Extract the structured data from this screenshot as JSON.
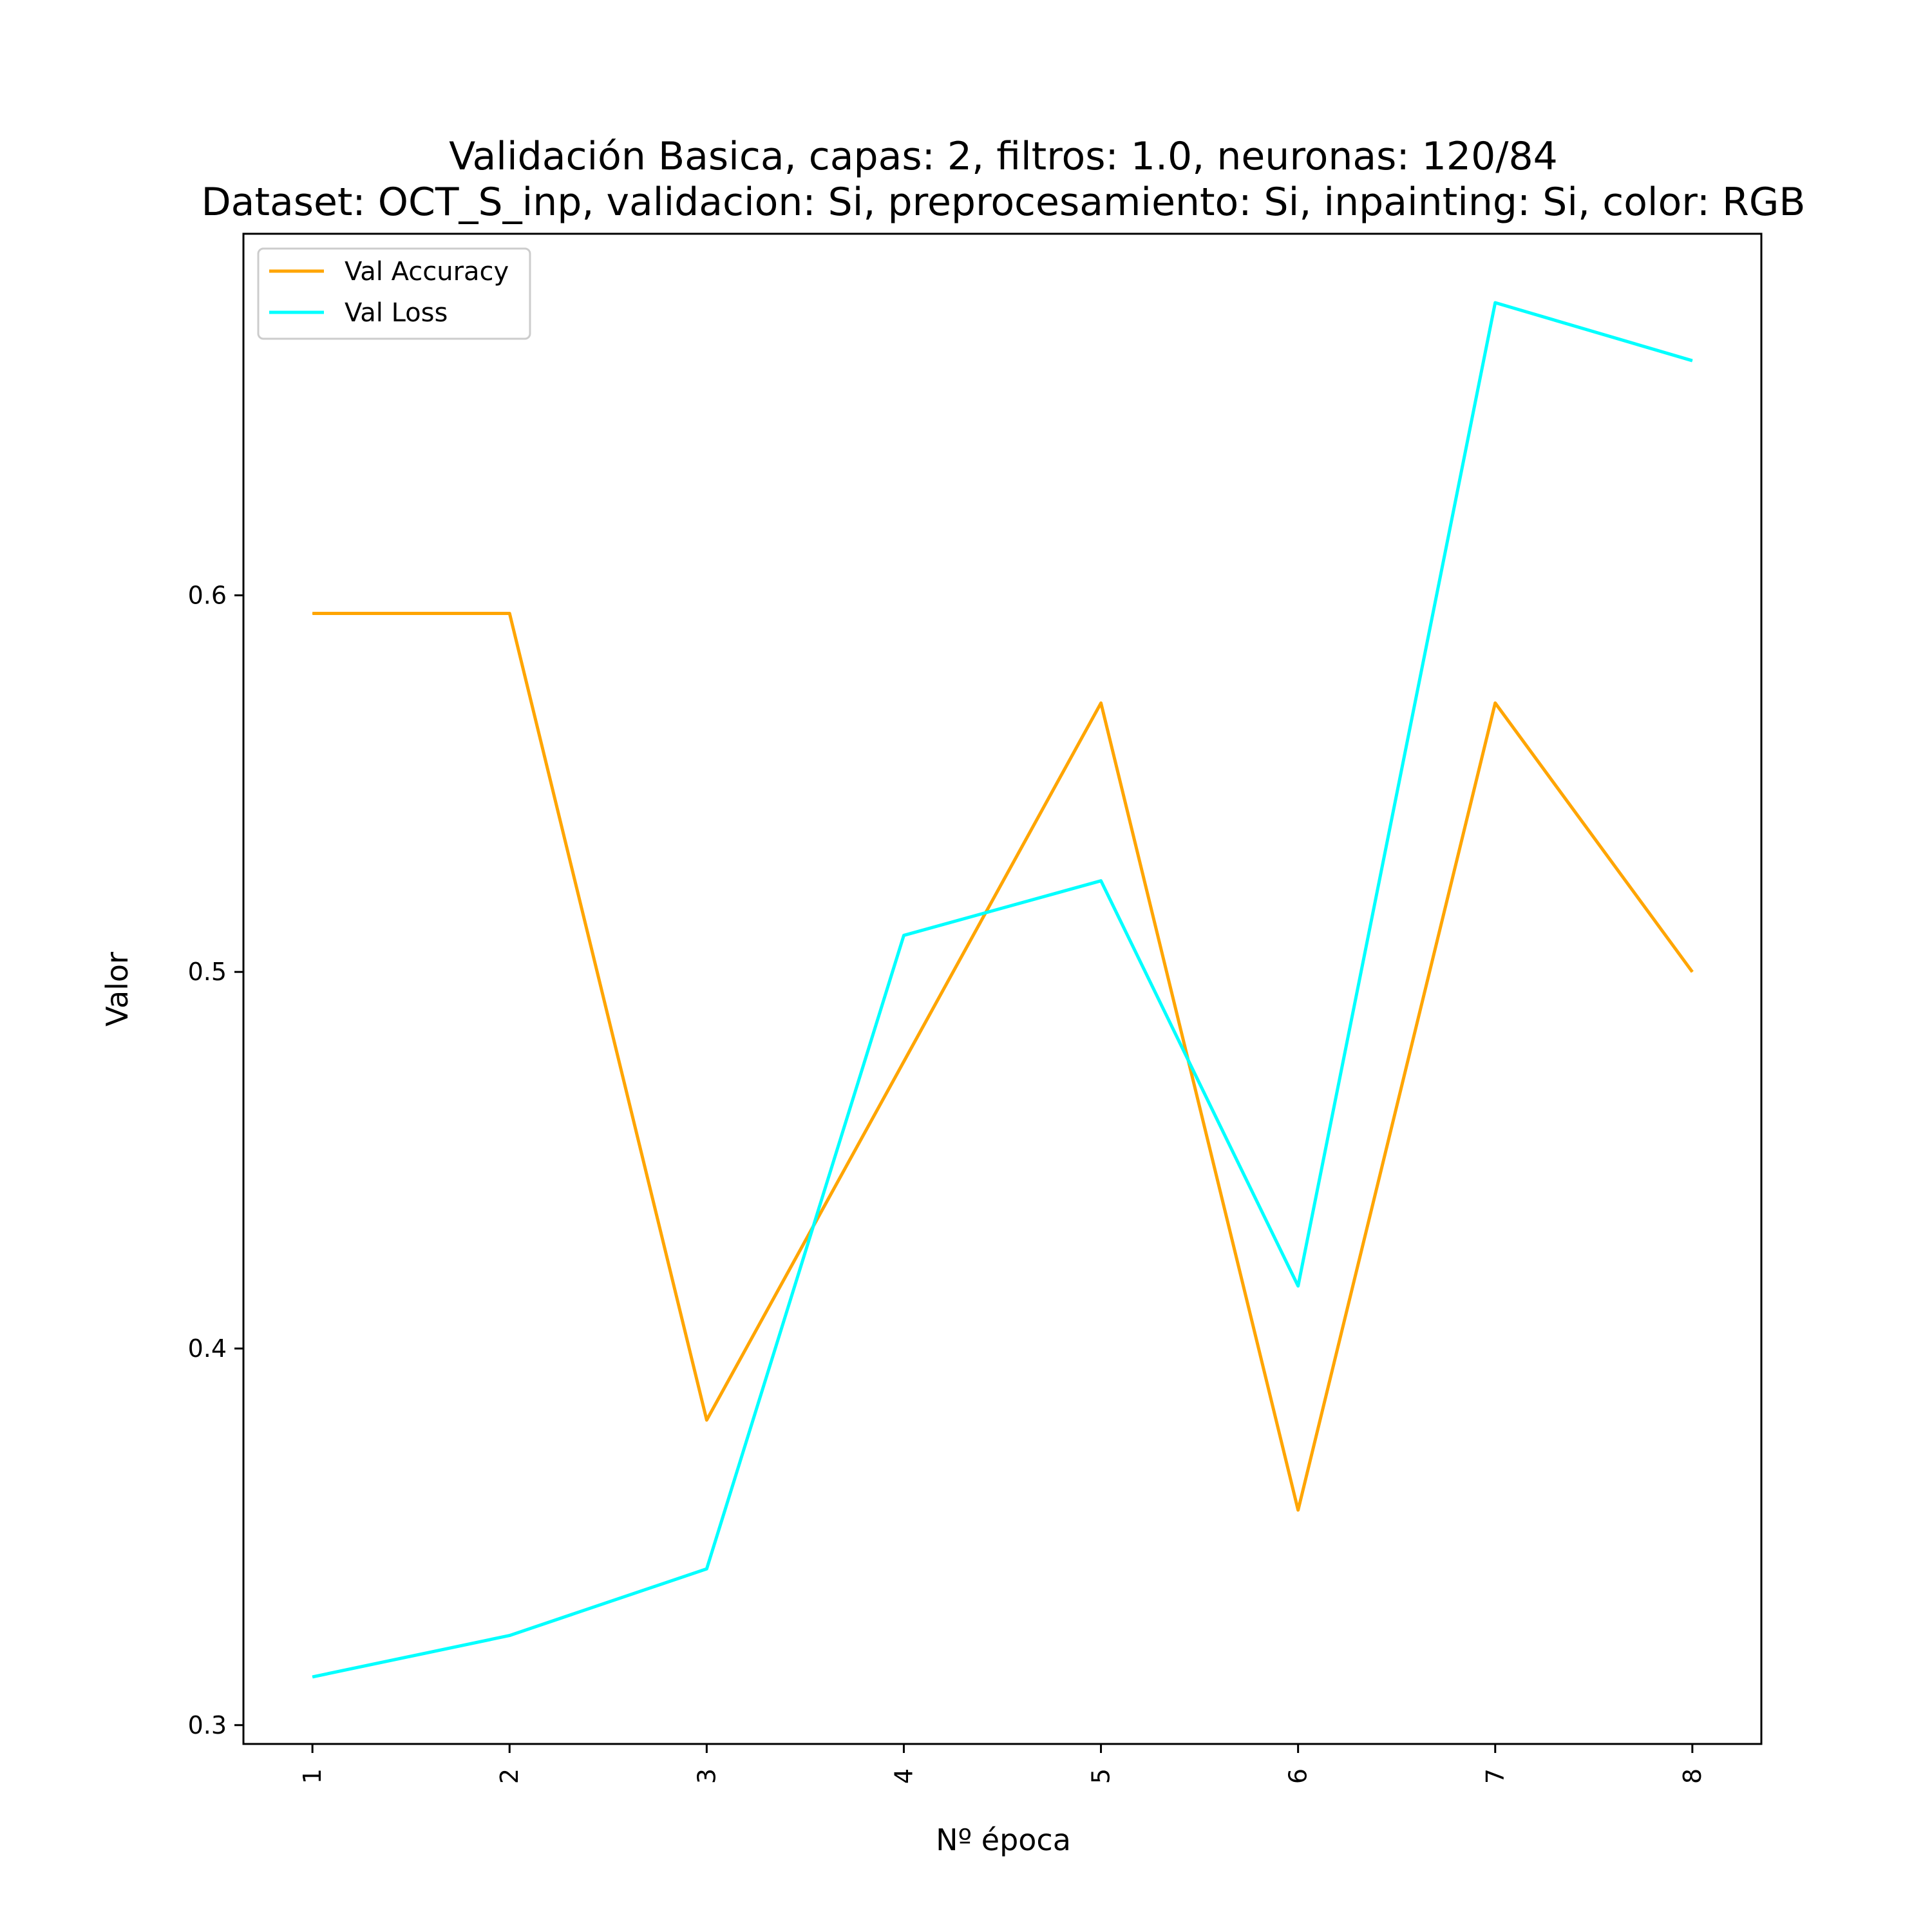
{
  "chart_data": {
    "type": "line",
    "title": "Validación Basica, capas: 2, filtros: 1.0, neuronas: 120/84",
    "subtitle": "Dataset: OCT_S_inp, validacion: Si, preprocesamiento: Si, inpainting: Si, color: RGB",
    "xlabel": "Nº época",
    "ylabel": "Valor",
    "x": [
      1,
      2,
      3,
      4,
      5,
      6,
      7,
      8
    ],
    "x_tick_labels": [
      "1",
      "2",
      "3",
      "4",
      "5",
      "6",
      "7",
      "8"
    ],
    "y_ticks": [
      0.3,
      0.4,
      0.5,
      0.6
    ],
    "y_tick_labels": [
      "0.3",
      "0.4",
      "0.5",
      "0.6"
    ],
    "xlim": [
      0.65,
      8.35
    ],
    "ylim": [
      0.295,
      0.696
    ],
    "grid": false,
    "legend_position": "top-left",
    "series": [
      {
        "name": "Val Accuracy",
        "color": "#FFA500",
        "values": [
          0.5952,
          0.5952,
          0.381,
          0.4762,
          0.5714,
          0.3571,
          0.5714,
          0.5
        ]
      },
      {
        "name": "Val Loss",
        "color": "#00FFFF",
        "values": [
          0.3128,
          0.3238,
          0.3415,
          0.5097,
          0.5242,
          0.4166,
          0.6777,
          0.6623
        ]
      }
    ]
  }
}
